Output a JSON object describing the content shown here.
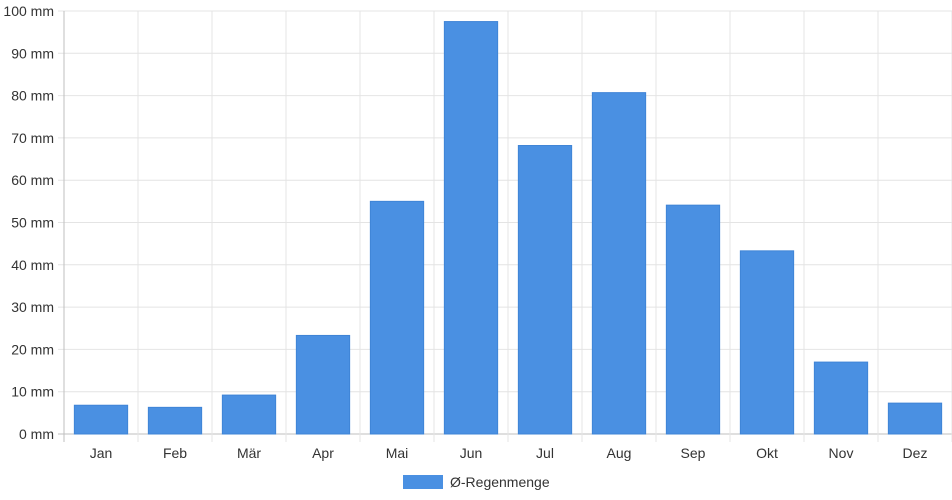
{
  "chart_data": {
    "type": "bar",
    "categories": [
      "Jan",
      "Feb",
      "Mär",
      "Apr",
      "Mai",
      "Jun",
      "Jul",
      "Aug",
      "Sep",
      "Okt",
      "Nov",
      "Dez"
    ],
    "series": [
      {
        "name": "Ø-Regenmenge",
        "color": "#4a90e2",
        "values": [
          6.8,
          6.3,
          9.2,
          23.3,
          55.0,
          97.5,
          68.2,
          80.7,
          54.1,
          43.3,
          17.0,
          7.3
        ]
      }
    ],
    "y_tick_labels": [
      "0 mm",
      "10 mm",
      "20 mm",
      "30 mm",
      "40 mm",
      "50 mm",
      "60 mm",
      "70 mm",
      "80 mm",
      "90 mm",
      "100 mm"
    ],
    "ylim": [
      0,
      100
    ],
    "grid": true,
    "legend_position": "bottom",
    "title": "",
    "xlabel": "",
    "ylabel": ""
  }
}
